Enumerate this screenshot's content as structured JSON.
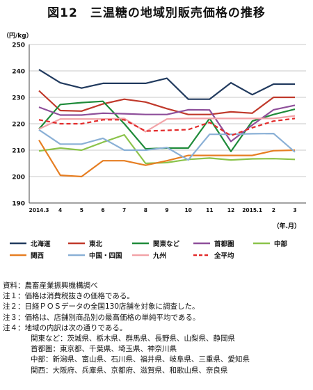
{
  "figure": {
    "title": "図12　三温糖の地域別販売価格の推移"
  },
  "chart_data": {
    "type": "line",
    "title": "",
    "ylabel": "（円/kg）",
    "xlabel": "（年.月）",
    "ylim": [
      190,
      250
    ],
    "yticks": [
      190,
      200,
      210,
      220,
      230,
      240,
      250
    ],
    "grid": true,
    "legend_position": "bottom",
    "categories": [
      "2014.3",
      "4",
      "5",
      "6",
      "7",
      "8",
      "9",
      "10",
      "11",
      "12",
      "2015.1",
      "2",
      "3"
    ],
    "series": [
      {
        "name": "北海道",
        "color": "#213a5e",
        "dash": false,
        "values": [
          240.5,
          235.5,
          233.5,
          235.3,
          235.3,
          235.3,
          237.2,
          229.3,
          229.3,
          235.5,
          231.0,
          235.0,
          235.0
        ]
      },
      {
        "name": "東北",
        "color": "#c0392b",
        "dash": false,
        "values": [
          232.5,
          225.0,
          224.8,
          227.5,
          229.3,
          228.2,
          225.7,
          223.5,
          223.5,
          224.5,
          224.0,
          230.0,
          230.0
        ]
      },
      {
        "name": "関東など",
        "color": "#1f8b3a",
        "dash": false,
        "values": [
          218.0,
          227.3,
          228.0,
          228.5,
          220.0,
          210.5,
          210.8,
          210.8,
          222.0,
          209.5,
          221.0,
          223.5,
          225.5
        ]
      },
      {
        "name": "首都圏",
        "color": "#8e4f9a",
        "dash": false,
        "values": [
          226.3,
          223.3,
          223.3,
          224.0,
          223.8,
          223.5,
          223.5,
          225.3,
          225.2,
          213.3,
          219.5,
          225.3,
          227.0
        ]
      },
      {
        "name": "中部",
        "color": "#8bc34a",
        "dash": false,
        "values": [
          209.7,
          210.8,
          210.0,
          213.0,
          215.8,
          205.0,
          205.3,
          206.5,
          207.0,
          206.3,
          206.7,
          206.8,
          206.5
        ]
      },
      {
        "name": "関西",
        "color": "#e67e22",
        "dash": false,
        "values": [
          213.8,
          200.5,
          200.0,
          206.0,
          206.0,
          204.3,
          206.0,
          208.0,
          208.0,
          208.0,
          208.0,
          209.8,
          210.0
        ]
      },
      {
        "name": "中国・四国",
        "color": "#8ab0d6",
        "dash": false,
        "values": [
          217.7,
          212.3,
          212.3,
          214.5,
          210.0,
          210.0,
          211.0,
          206.3,
          216.0,
          216.0,
          216.2,
          216.3,
          209.3
        ]
      },
      {
        "name": "九州",
        "color": "#f2a3a8",
        "dash": false,
        "values": [
          218.0,
          221.8,
          221.8,
          221.8,
          222.0,
          217.0,
          221.8,
          222.0,
          222.0,
          222.0,
          222.0,
          222.0,
          223.0
        ]
      },
      {
        "name": "全平均",
        "color": "#e32b2b",
        "dash": true,
        "values": [
          221.5,
          220.0,
          220.0,
          221.5,
          221.5,
          217.2,
          217.5,
          217.8,
          220.5,
          215.5,
          218.5,
          221.0,
          222.0
        ]
      }
    ]
  },
  "notes": {
    "source": "資料：農畜産業振興機構調べ",
    "note1": "注１：価格は消費税抜きの価格である。",
    "note2": "注２：日経ＰＯＳデータの全国130店舗を対象に調査した。",
    "note3": "注３：価格は、店舗別商品別の最高価格の単純平均である。",
    "note4": "注４：地域の内訳は次の通りである。",
    "kanto": "関東など：茨城県、栃木県、群馬県、長野県、山梨県、静岡県",
    "shutoken": "首都圏：東京都、千葉県、埼玉県、神奈川県",
    "chubu": "中部：新潟県、富山県、石川県、福井県、岐阜県、三重県、愛知県",
    "kansai": "関西：大阪府、兵庫県、京都府、滋賀県、和歌山県、奈良県"
  }
}
